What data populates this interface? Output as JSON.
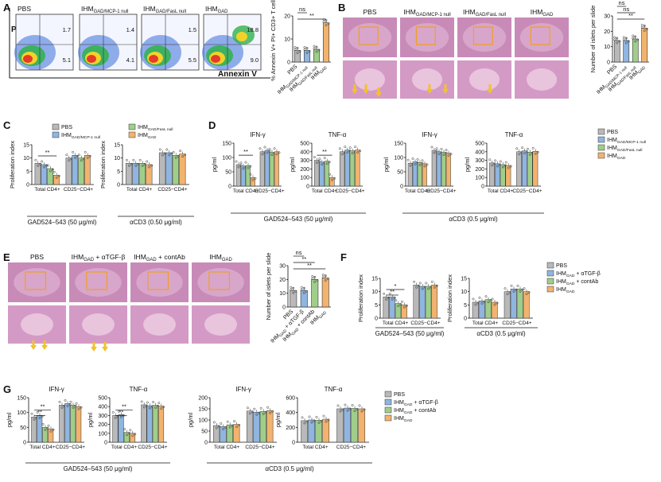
{
  "panels": {
    "A": {
      "letter": "A"
    },
    "B": {
      "letter": "B"
    },
    "C": {
      "letter": "C"
    },
    "D": {
      "letter": "D"
    },
    "E": {
      "letter": "E"
    },
    "F": {
      "letter": "F"
    },
    "G": {
      "letter": "G"
    }
  },
  "colors": {
    "PBS": "#b9b9b9",
    "MCP1": "#8fb5e0",
    "FasL": "#9fce8a",
    "GAD": "#f2b36f",
    "aTGF": "#8fb5e0",
    "cont": "#9fce8a"
  },
  "flow": {
    "xlabel": "Annexin V",
    "ylabel": "PI",
    "plots": [
      {
        "title": "PBS",
        "q1": "1.7",
        "q2": "5.1"
      },
      {
        "title": "IHMGAD/MCP-1 null",
        "q1": "1.4",
        "q2": "4.1"
      },
      {
        "title": "IHMGAD/FasL null",
        "q1": "1.5",
        "q2": "5.5"
      },
      {
        "title": "IHMGAD",
        "q1": "18.8",
        "q2": "9.0"
      }
    ]
  },
  "histology_B": {
    "labels": [
      "PBS",
      "IHMGAD/MCP-1 null",
      "IHMGAD/FasL null",
      "IHMGAD"
    ]
  },
  "histology_E": {
    "labels": [
      "PBS",
      "IHMGAD + αTGF-β",
      "IHMGAD + contAb",
      "IHMGAD"
    ]
  },
  "legend_C": [
    "PBS",
    "IHMGAD/MCP-1 null",
    "IHMGAD/FasL null",
    "IHMGAD"
  ],
  "legend_D": [
    "PBS",
    "IHMGAD/MCP-1 null",
    "IHMGAD/FasL null",
    "IHMGAD"
  ],
  "legend_F": [
    "PBS",
    "IHMGAD + αTGF-β",
    "IHMGAD + contAb",
    "IHMGAD"
  ],
  "legend_G": [
    "PBS",
    "IHMGAD + αTGF-β",
    "IHMGAD + contAb",
    "IHMGAD"
  ],
  "stim": {
    "gad": "GAD524–543 (50 μg/ml)",
    "cd3_C": "αCD3 (0.50 μg/ml)",
    "cd3": "αCD3 (0.5 μg/ml)"
  },
  "chart_data": [
    {
      "id": "A",
      "type": "bar",
      "ylabel": "% Annexin V+ PI+ CD3+ T cells",
      "ylim": [
        0,
        20
      ],
      "ticks": [
        0,
        10,
        20
      ],
      "categories": [
        "PBS",
        "IHMGAD/MCP-1 null",
        "IHMGAD/FasL null",
        "IHMGAD"
      ],
      "values": [
        5,
        5,
        5.5,
        17
      ],
      "sig": [
        {
          "a": 0,
          "b": 1,
          "t": "ns"
        },
        {
          "a": 0,
          "b": 3,
          "t": "**"
        }
      ]
    },
    {
      "id": "B",
      "type": "bar",
      "ylabel": "Number of islets per slide",
      "ylim": [
        0,
        30
      ],
      "ticks": [
        0,
        10,
        20,
        30
      ],
      "categories": [
        "PBS",
        "IHMGAD/MCP-1 null",
        "IHMGAD/FasL null",
        "IHMGAD"
      ],
      "values": [
        14,
        14,
        15,
        22
      ],
      "sig": [
        {
          "a": 0,
          "b": 1,
          "t": "ns"
        },
        {
          "a": 0,
          "b": 2,
          "t": "ns"
        },
        {
          "a": 0,
          "b": 3,
          "t": "**"
        }
      ]
    },
    {
      "id": "C1",
      "type": "bar",
      "ylabel": "Proliferation index",
      "ylim": [
        0,
        15
      ],
      "ticks": [
        0,
        5,
        10,
        15
      ],
      "groups": [
        "Total CD4+",
        "CD25−CD4+"
      ],
      "series": [
        {
          "name": "PBS",
          "values": [
            8,
            10
          ]
        },
        {
          "name": "IHMGAD/MCP-1 null",
          "values": [
            7.5,
            11
          ]
        },
        {
          "name": "IHMGAD/FasL null",
          "values": [
            6,
            10
          ]
        },
        {
          "name": "IHMGAD",
          "values": [
            3.5,
            11
          ]
        }
      ],
      "sig": [
        {
          "t": "**"
        }
      ],
      "stim": "GAD524–543 (50 μg/ml)"
    },
    {
      "id": "C2",
      "type": "bar",
      "ylabel": "Proliferation index",
      "ylim": [
        0,
        15
      ],
      "ticks": [
        0,
        5,
        10,
        15
      ],
      "groups": [
        "Total CD4+",
        "CD25−CD4+"
      ],
      "series": [
        {
          "name": "PBS",
          "values": [
            8,
            12
          ]
        },
        {
          "name": "IHMGAD/MCP-1 null",
          "values": [
            8,
            12
          ]
        },
        {
          "name": "IHMGAD/FasL null",
          "values": [
            8,
            11
          ]
        },
        {
          "name": "IHMGAD",
          "values": [
            7.5,
            11.5
          ]
        }
      ],
      "stim": "αCD3 (0.50 μg/ml)"
    },
    {
      "id": "D1",
      "type": "bar",
      "title": "IFN-γ",
      "ylabel": "pg/ml",
      "ylim": [
        0,
        150
      ],
      "ticks": [
        0,
        50,
        100,
        150
      ],
      "groups": [
        "Total CD4+",
        "CD25−CD4+"
      ],
      "series": [
        {
          "name": "PBS",
          "values": [
            75,
            120
          ]
        },
        {
          "name": "IHMGAD/MCP-1 null",
          "values": [
            70,
            125
          ]
        },
        {
          "name": "IHMGAD/FasL null",
          "values": [
            72,
            118
          ]
        },
        {
          "name": "IHMGAD",
          "values": [
            30,
            120
          ]
        }
      ],
      "sig": [
        {
          "t": "**"
        }
      ]
    },
    {
      "id": "D2",
      "type": "bar",
      "title": "TNF-α",
      "ylabel": "pg/ml",
      "ylim": [
        0,
        500
      ],
      "ticks": [
        0,
        100,
        200,
        300,
        400,
        500
      ],
      "groups": [
        "Total CD4+",
        "CD25−CD4+"
      ],
      "series": [
        {
          "name": "PBS",
          "values": [
            300,
            400
          ]
        },
        {
          "name": "IHMGAD/MCP-1 null",
          "values": [
            280,
            420
          ]
        },
        {
          "name": "IHMGAD/FasL null",
          "values": [
            290,
            410
          ]
        },
        {
          "name": "IHMGAD",
          "values": [
            100,
            420
          ]
        }
      ],
      "sig": [
        {
          "t": "**"
        }
      ]
    },
    {
      "id": "D3",
      "type": "bar",
      "title": "IFN-γ",
      "ylabel": "pg/ml",
      "ylim": [
        0,
        150
      ],
      "ticks": [
        0,
        50,
        100,
        150
      ],
      "groups": [
        "Total CD4+",
        "CD25−CD4+"
      ],
      "series": [
        {
          "name": "PBS",
          "values": [
            80,
            125
          ]
        },
        {
          "name": "IHMGAD/MCP-1 null",
          "values": [
            85,
            120
          ]
        },
        {
          "name": "IHMGAD/FasL null",
          "values": [
            82,
            118
          ]
        },
        {
          "name": "IHMGAD",
          "values": [
            78,
            115
          ]
        }
      ]
    },
    {
      "id": "D4",
      "type": "bar",
      "title": "TNF-α",
      "ylabel": "pg/ml",
      "ylim": [
        0,
        500
      ],
      "ticks": [
        0,
        100,
        200,
        300,
        400,
        500
      ],
      "groups": [
        "Total CD4+",
        "CD25−CD4+"
      ],
      "series": [
        {
          "name": "PBS",
          "values": [
            270,
            400
          ]
        },
        {
          "name": "IHMGAD/MCP-1 null",
          "values": [
            260,
            410
          ]
        },
        {
          "name": "IHMGAD/FasL null",
          "values": [
            250,
            395
          ]
        },
        {
          "name": "IHMGAD",
          "values": [
            240,
            405
          ]
        }
      ]
    },
    {
      "id": "E",
      "type": "bar",
      "ylabel": "Number of islets per slide",
      "ylim": [
        0,
        30
      ],
      "ticks": [
        0,
        10,
        20,
        30
      ],
      "categories": [
        "PBS",
        "IHMGAD + αTGF-β",
        "IHMGAD + contAb",
        "IHMGAD"
      ],
      "values": [
        12,
        12,
        20,
        21
      ],
      "sig": [
        {
          "a": 0,
          "b": 1,
          "t": "ns"
        },
        {
          "a": 0,
          "b": 2,
          "t": "**"
        },
        {
          "a": 0,
          "b": 3,
          "t": "**"
        }
      ]
    },
    {
      "id": "F1",
      "type": "bar",
      "ylabel": "Proliferation index",
      "ylim": [
        0,
        15
      ],
      "ticks": [
        0,
        5,
        10,
        15
      ],
      "groups": [
        "Total CD4+",
        "CD25−CD4+"
      ],
      "series": [
        {
          "name": "PBS",
          "values": [
            8,
            12.5
          ]
        },
        {
          "name": "IHMGAD + αTGF-β",
          "values": [
            8,
            12
          ]
        },
        {
          "name": "IHMGAD + contAb",
          "values": [
            5.5,
            12
          ]
        },
        {
          "name": "IHMGAD",
          "values": [
            5,
            12.5
          ]
        }
      ],
      "sig": [
        {
          "t": "*"
        },
        {
          "t": "**"
        }
      ]
    },
    {
      "id": "F2",
      "type": "bar",
      "ylabel": "Proliferation index",
      "ylim": [
        0,
        15
      ],
      "ticks": [
        0,
        5,
        10,
        15
      ],
      "groups": [
        "Total CD4+",
        "CD25−CD4+"
      ],
      "series": [
        {
          "name": "PBS",
          "values": [
            6,
            10
          ]
        },
        {
          "name": "IHMGAD + αTGF-β",
          "values": [
            6.5,
            11
          ]
        },
        {
          "name": "IHMGAD + contAb",
          "values": [
            7,
            11
          ]
        },
        {
          "name": "IHMGAD",
          "values": [
            6,
            10
          ]
        }
      ]
    },
    {
      "id": "G1",
      "type": "bar",
      "title": "IFN-γ",
      "ylabel": "pg/ml",
      "ylim": [
        0,
        150
      ],
      "ticks": [
        0,
        50,
        100,
        150
      ],
      "groups": [
        "Total CD4+",
        "CD25−CD4+"
      ],
      "series": [
        {
          "name": "PBS",
          "values": [
            85,
            125
          ]
        },
        {
          "name": "IHMGAD + αTGF-β",
          "values": [
            90,
            130
          ]
        },
        {
          "name": "IHMGAD + contAb",
          "values": [
            50,
            125
          ]
        },
        {
          "name": "IHMGAD",
          "values": [
            45,
            120
          ]
        }
      ],
      "sig": [
        {
          "t": "**"
        },
        {
          "t": "**"
        }
      ]
    },
    {
      "id": "G2",
      "type": "bar",
      "title": "TNF-α",
      "ylabel": "pg/ml",
      "ylim": [
        0,
        500
      ],
      "ticks": [
        0,
        100,
        200,
        300,
        400,
        500
      ],
      "groups": [
        "Total CD4+",
        "CD25−CD4+"
      ],
      "series": [
        {
          "name": "PBS",
          "values": [
            300,
            420
          ]
        },
        {
          "name": "IHMGAD + αTGF-β",
          "values": [
            310,
            410
          ]
        },
        {
          "name": "IHMGAD + contAb",
          "values": [
            110,
            415
          ]
        },
        {
          "name": "IHMGAD",
          "values": [
            100,
            405
          ]
        }
      ],
      "sig": [
        {
          "t": "**"
        },
        {
          "t": "**"
        }
      ]
    },
    {
      "id": "G3",
      "type": "bar",
      "title": "IFN-γ",
      "ylabel": "pg/ml",
      "ylim": [
        0,
        200
      ],
      "ticks": [
        0,
        50,
        100,
        150,
        200
      ],
      "groups": [
        "Total CD4+",
        "CD25−CD4+"
      ],
      "series": [
        {
          "name": "PBS",
          "values": [
            75,
            140
          ]
        },
        {
          "name": "IHMGAD + αTGF-β",
          "values": [
            70,
            135
          ]
        },
        {
          "name": "IHMGAD + contAb",
          "values": [
            78,
            138
          ]
        },
        {
          "name": "IHMGAD",
          "values": [
            80,
            142
          ]
        }
      ]
    },
    {
      "id": "G4",
      "type": "bar",
      "title": "TNF-α",
      "ylabel": "pg/ml",
      "ylim": [
        0,
        600
      ],
      "ticks": [
        0,
        200,
        400,
        600
      ],
      "groups": [
        "Total CD4+",
        "CD25−CD4+"
      ],
      "series": [
        {
          "name": "PBS",
          "values": [
            290,
            450
          ]
        },
        {
          "name": "IHMGAD + αTGF-β",
          "values": [
            300,
            460
          ]
        },
        {
          "name": "IHMGAD + contAb",
          "values": [
            295,
            455
          ]
        },
        {
          "name": "IHMGAD",
          "values": [
            310,
            450
          ]
        }
      ]
    }
  ]
}
